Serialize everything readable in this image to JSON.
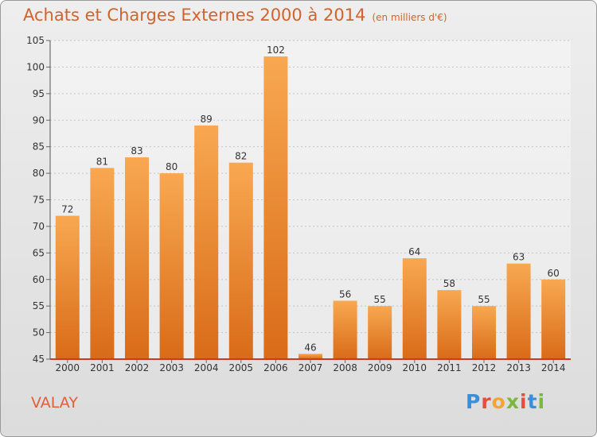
{
  "title": "Achats et Charges Externes 2000 à 2014",
  "subtitle": "(en milliers d'€)",
  "commune": "VALAY",
  "logo": {
    "letters": [
      "P",
      "r",
      "o",
      "x",
      "i",
      "t",
      "i"
    ],
    "colors": [
      "#3a8fd6",
      "#e84d3c",
      "#f2a531",
      "#7cb83e",
      "#e84d3c",
      "#3a8fd6",
      "#7cb83e"
    ]
  },
  "chart_data": {
    "type": "bar",
    "categories": [
      "2000",
      "2001",
      "2002",
      "2003",
      "2004",
      "2005",
      "2006",
      "2007",
      "2008",
      "2009",
      "2010",
      "2011",
      "2012",
      "2013",
      "2014"
    ],
    "values": [
      72,
      81,
      83,
      80,
      89,
      82,
      102,
      46,
      56,
      55,
      64,
      58,
      55,
      63,
      60
    ],
    "title": "Achats et Charges Externes 2000 à 2014",
    "subtitle": "(en milliers d'€)",
    "ylim": [
      45,
      105
    ],
    "yticks": [
      45,
      50,
      55,
      60,
      65,
      70,
      75,
      80,
      85,
      90,
      95,
      100,
      105
    ],
    "grid": true,
    "bar_color_top": "#f8a851",
    "bar_color_bottom": "#d96b18",
    "axis_color": "#c83a2a"
  }
}
